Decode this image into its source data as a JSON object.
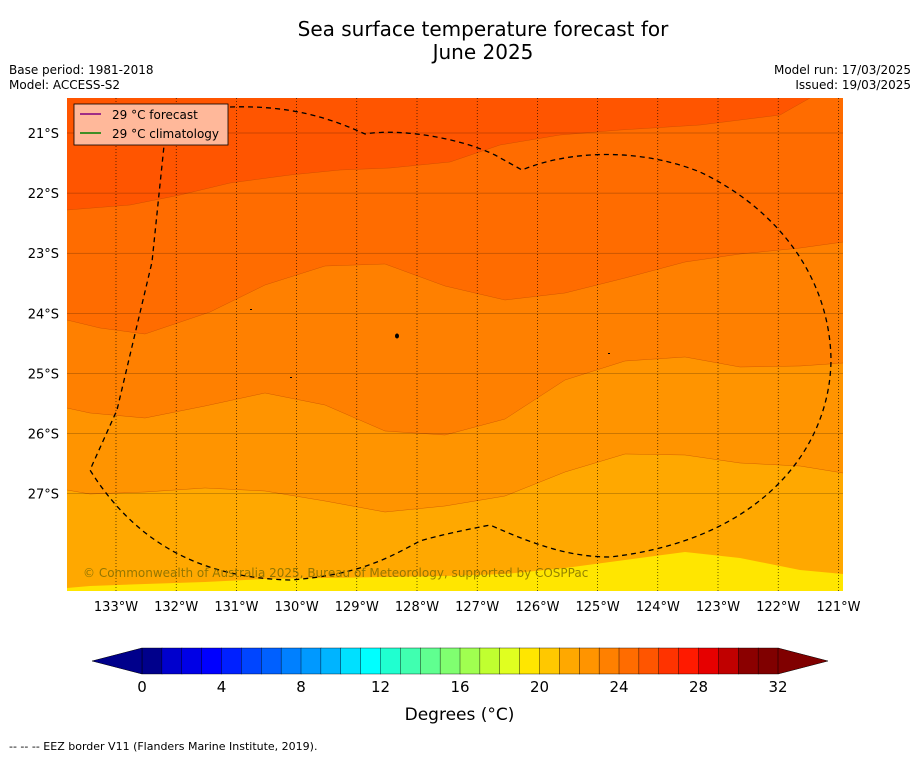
{
  "header": {
    "title_line1": "Sea surface temperature forecast for",
    "title_line2": "June 2025",
    "base_period": "Base period: 1981-2018",
    "model": "Model: ACCESS-S2",
    "model_run": "Model run: 17/03/2025",
    "issued": "Issued: 19/03/2025"
  },
  "map": {
    "lon_labels": [
      "133°W",
      "132°W",
      "131°W",
      "130°W",
      "129°W",
      "128°W",
      "127°W",
      "126°W",
      "125°W",
      "124°W",
      "123°W",
      "122°W",
      "121°W"
    ],
    "lat_labels": [
      "21°S",
      "22°S",
      "23°S",
      "24°S",
      "25°S",
      "26°S",
      "27°S"
    ],
    "legend": {
      "forecast": "29 °C  forecast",
      "climatology": "29 °C  climatology",
      "forecast_color": "#800080",
      "climatology_color": "#008000"
    },
    "copyright": "© Commonwealth of Australia 2025, Bureau of Meteorology, supported by COSPPac",
    "band_colors": [
      "#ff5500",
      "#ff6c00",
      "#ff8000",
      "#ff9400",
      "#ffa800",
      "#ffc800",
      "#ffe600"
    ]
  },
  "colorbar": {
    "tick_labels": [
      "0",
      "4",
      "8",
      "12",
      "16",
      "20",
      "24",
      "28",
      "32"
    ],
    "label": "Degrees (°C)",
    "colors": [
      "#00008b",
      "#0000cd",
      "#0000e6",
      "#0000ff",
      "#0020ff",
      "#0045ff",
      "#0060ff",
      "#0080ff",
      "#0099ff",
      "#00b4ff",
      "#00e0ff",
      "#00ffff",
      "#20ffd0",
      "#40ffb0",
      "#60ff90",
      "#80ff70",
      "#a0ff50",
      "#c0ff30",
      "#e0ff20",
      "#ffe600",
      "#ffc800",
      "#ffa800",
      "#ff9400",
      "#ff8000",
      "#ff6c00",
      "#ff5500",
      "#ff3300",
      "#ff1a00",
      "#e60000",
      "#c00000",
      "#8b0000",
      "#800000"
    ]
  },
  "footnote": "--  --  -- EEZ border V11 (Flanders Marine Institute, 2019)."
}
